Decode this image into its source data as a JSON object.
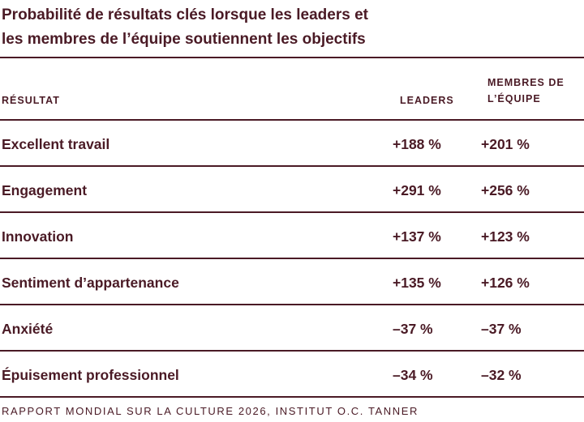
{
  "title_line1": "Probabilité de résultats clés lorsque les leaders et",
  "title_line2": "les membres de l’équipe soutiennent les objectifs",
  "table": {
    "headers": {
      "result": "RÉSULTAT",
      "leaders": "LEADERS",
      "members_line1": "MEMBRES DE",
      "members_line2": "L’ÉQUIPE"
    },
    "rows": [
      {
        "label": "Excellent travail",
        "leaders": "+188 %",
        "members": "+201 %"
      },
      {
        "label": "Engagement",
        "leaders": "+291 %",
        "members": "+256 %"
      },
      {
        "label": "Innovation",
        "leaders": "+137 %",
        "members": "+123 %"
      },
      {
        "label": "Sentiment d’appartenance",
        "leaders": "+135 %",
        "members": "+126 %"
      },
      {
        "label": "Anxiété",
        "leaders": "–37 %",
        "members": "–37 %"
      },
      {
        "label": "Épuisement professionnel",
        "leaders": "–34 %",
        "members": "–32 %"
      }
    ]
  },
  "footer": "RAPPORT MONDIAL SUR LA CULTURE 2026, INSTITUT O.C. TANNER",
  "colors": {
    "text": "#4a1a25",
    "rule": "#4a1a25",
    "background": "#ffffff"
  }
}
